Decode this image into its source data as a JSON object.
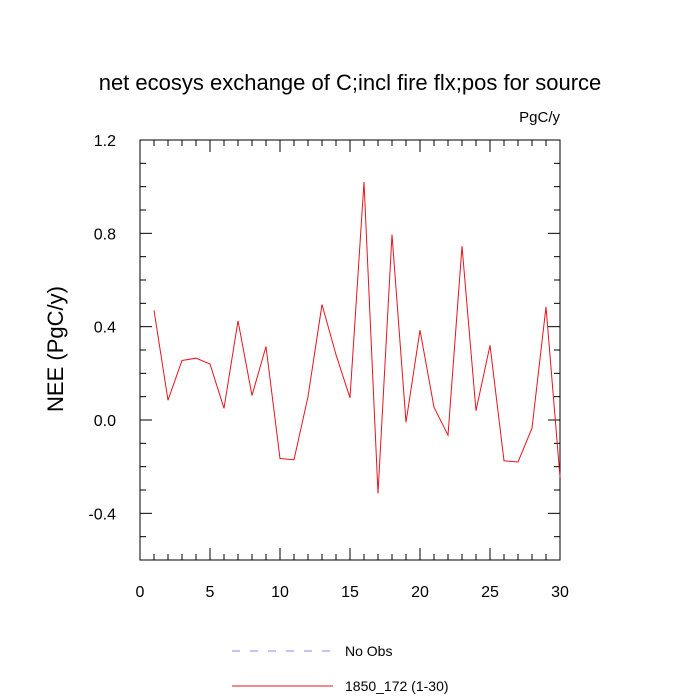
{
  "chart_data": {
    "type": "line",
    "title": "net ecosys exchange of C;incl fire flx;pos for source",
    "units_label": "PgC/y",
    "ylabel": "NEE  (PgC/y)",
    "xlabel": "",
    "xlim": [
      0,
      30
    ],
    "ylim": [
      -0.6,
      1.2
    ],
    "x_ticks": [
      0,
      5,
      10,
      15,
      20,
      25,
      30
    ],
    "x_tick_labels": [
      "0",
      "5",
      "10",
      "15",
      "20",
      "25",
      "30"
    ],
    "y_ticks": [
      -0.4,
      0.0,
      0.4,
      0.8,
      1.2
    ],
    "y_tick_labels": [
      "-0.4",
      "0.0",
      "0.4",
      "0.8",
      "1.2"
    ],
    "grid": false,
    "legend_position": "bottom",
    "legend": [
      {
        "label": "No Obs",
        "color": "#8a8aee",
        "style": "dashed"
      },
      {
        "label": "1850_172 (1-30)",
        "color": "#e8141c",
        "style": "solid"
      }
    ],
    "series": [
      {
        "name": "1850_172 (1-30)",
        "color": "#e8141c",
        "x": [
          1,
          2,
          3,
          4,
          5,
          6,
          7,
          8,
          9,
          10,
          11,
          12,
          13,
          14,
          15,
          16,
          17,
          18,
          19,
          20,
          21,
          22,
          23,
          24,
          25,
          26,
          27,
          28,
          29,
          30
        ],
        "y": [
          0.47,
          0.085,
          0.255,
          0.265,
          0.24,
          0.05,
          0.425,
          0.105,
          0.315,
          -0.165,
          -0.17,
          0.1,
          0.495,
          0.28,
          0.095,
          1.02,
          -0.315,
          0.795,
          -0.01,
          0.385,
          0.055,
          -0.065,
          0.745,
          0.04,
          0.32,
          -0.175,
          -0.18,
          -0.035,
          0.485,
          -0.245
        ]
      }
    ]
  }
}
